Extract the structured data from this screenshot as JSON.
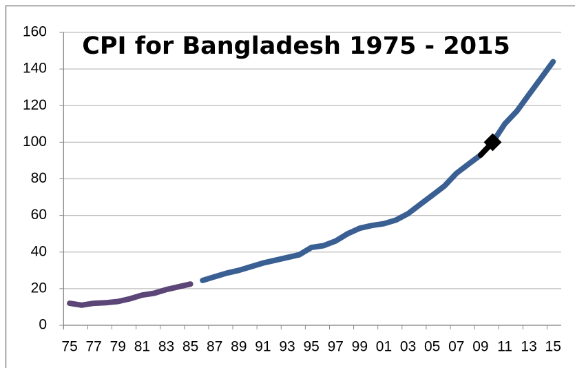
{
  "chart_data": {
    "type": "line",
    "title": "CPI for Bangladesh 1975 - 2015",
    "categories": [
      "75",
      null,
      "77",
      null,
      "79",
      null,
      "81",
      null,
      "83",
      null,
      "85",
      null,
      "87",
      null,
      "89",
      null,
      "91",
      null,
      "93",
      null,
      "95",
      null,
      "97",
      null,
      "99",
      null,
      "01",
      null,
      "03",
      null,
      "05",
      null,
      "07",
      null,
      "09",
      null,
      "11",
      null,
      "13",
      null,
      "15"
    ],
    "series": [
      {
        "color": "#5b4677",
        "values": [
          12,
          11,
          12,
          12.3,
          13,
          14.5,
          16.5,
          17.5,
          19.5,
          21,
          22.5,
          null,
          null,
          null,
          null,
          null,
          null,
          null,
          null,
          null,
          null,
          null,
          null,
          null,
          null,
          null,
          null,
          null,
          null,
          null,
          null,
          null,
          null,
          null,
          null,
          null,
          null,
          null,
          null,
          null,
          null
        ]
      },
      {
        "color": "#3a5f92",
        "values": [
          null,
          null,
          null,
          null,
          null,
          null,
          null,
          null,
          null,
          null,
          null,
          24.5,
          26.5,
          28.5,
          30,
          32,
          34,
          35.5,
          37,
          38.5,
          42.5,
          43.5,
          46,
          50,
          53,
          54.5,
          55.5,
          57.5,
          61,
          66,
          71,
          76,
          83,
          88,
          93,
          100,
          110,
          117,
          126,
          135,
          144
        ]
      },
      {
        "color": "#000000",
        "values": [
          null,
          null,
          null,
          null,
          null,
          null,
          null,
          null,
          null,
          null,
          null,
          null,
          null,
          null,
          null,
          null,
          null,
          null,
          null,
          null,
          null,
          null,
          null,
          null,
          null,
          null,
          null,
          null,
          null,
          null,
          null,
          null,
          null,
          null,
          93,
          100,
          null,
          null,
          null,
          null,
          null
        ]
      },
      {
        "color": "#000000",
        "marker": "diamond",
        "line": false,
        "values": [
          null,
          null,
          null,
          null,
          null,
          null,
          null,
          null,
          null,
          null,
          null,
          null,
          null,
          null,
          null,
          null,
          null,
          null,
          null,
          null,
          null,
          null,
          null,
          null,
          null,
          null,
          null,
          null,
          null,
          null,
          null,
          null,
          null,
          null,
          null,
          100,
          null,
          null,
          null,
          null,
          null
        ]
      }
    ],
    "ylim": [
      0,
      160
    ],
    "yticks": [
      0,
      20,
      40,
      60,
      80,
      100,
      120,
      140,
      160
    ],
    "grid": true
  }
}
